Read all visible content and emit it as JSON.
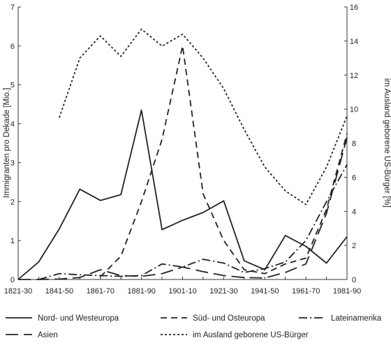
{
  "chart_data": {
    "type": "line",
    "categories": [
      "1821-30",
      "1831-40",
      "1841-50",
      "1851-60",
      "1861-70",
      "1871-80",
      "1881-90",
      "1891-1900",
      "1901-10",
      "1911-20",
      "1921-30",
      "1931-40",
      "1941-50",
      "1951-60",
      "1961-70",
      "1971-80",
      "1981-90"
    ],
    "x_tick_labels": [
      "1821-30",
      "1841-50",
      "1861-70",
      "1881-90",
      "1901-10",
      "1921-30",
      "1941-50",
      "1961-70",
      "1981-90"
    ],
    "ylabel_left": "Immigranten pro Dekade [Mio.]",
    "ylabel_right": "im Ausland geborene US-Bürger [%]",
    "ylim_left": [
      0,
      7
    ],
    "ylim_right": [
      0,
      16
    ],
    "yticks_left": [
      "0",
      "1",
      "2",
      "3",
      "4",
      "5",
      "6",
      "7"
    ],
    "yticks_right": [
      "0",
      "2",
      "4",
      "6",
      "8",
      "10",
      "12",
      "14",
      "16"
    ],
    "grid": false,
    "legend_position": "bottom",
    "series": [
      {
        "name": "Nord- und Westeuropa",
        "axis": "left",
        "style": "solid",
        "x": [
          "1821-30",
          "1831-40",
          "1841-50",
          "1851-60",
          "1861-70",
          "1871-80",
          "1881-90",
          "1891-1900",
          "1901-10",
          "1911-20",
          "1921-30",
          "1931-40",
          "1941-50",
          "1951-60",
          "1961-70",
          "1971-80",
          "1981-90"
        ],
        "values": [
          0.0,
          0.45,
          1.3,
          2.32,
          2.03,
          2.18,
          4.35,
          1.28,
          1.52,
          1.72,
          2.02,
          0.48,
          0.25,
          1.13,
          0.85,
          0.42,
          1.1
        ]
      },
      {
        "name": "Süd- und Osteuropa",
        "axis": "left",
        "style": "dashed",
        "x": [
          "1861-70",
          "1871-80",
          "1881-90",
          "1891-1900",
          "1901-10",
          "1911-20",
          "1921-30",
          "1931-40",
          "1941-50",
          "1951-60",
          "1961-70",
          "1971-80",
          "1981-90"
        ],
        "values": [
          0.07,
          0.6,
          2.0,
          3.6,
          6.0,
          2.2,
          1.0,
          0.25,
          0.15,
          0.4,
          0.55,
          1.8,
          3.75
        ]
      },
      {
        "name": "Lateinamerika",
        "axis": "left",
        "style": "dash-dot",
        "x": [
          "1831-40",
          "1841-50",
          "1851-60",
          "1861-70",
          "1871-80",
          "1881-90",
          "1891-1900",
          "1901-10",
          "1911-20",
          "1921-30",
          "1931-40",
          "1941-50",
          "1951-60",
          "1961-70",
          "1971-80",
          "1981-90"
        ],
        "values": [
          0.0,
          0.15,
          0.12,
          0.1,
          0.08,
          0.1,
          0.4,
          0.32,
          0.52,
          0.42,
          0.18,
          0.28,
          0.45,
          1.0,
          2.0,
          2.95
        ]
      },
      {
        "name": "Asien",
        "axis": "left",
        "style": "long-dash",
        "x": [
          "1821-30",
          "1831-40",
          "1841-50",
          "1851-60",
          "1861-70",
          "1871-80",
          "1881-90",
          "1891-1900",
          "1901-10",
          "1911-20",
          "1921-30",
          "1931-40",
          "1941-50",
          "1951-60",
          "1961-70",
          "1971-80",
          "1981-90"
        ],
        "values": [
          0.0,
          0.0,
          0.01,
          0.05,
          0.25,
          0.1,
          0.08,
          0.15,
          0.32,
          0.2,
          0.1,
          0.05,
          0.04,
          0.18,
          0.4,
          1.7,
          3.65
        ]
      },
      {
        "name": "im Ausland geborene US-Bürger",
        "axis": "right",
        "style": "dotted",
        "x": [
          "1841-50",
          "1851-60",
          "1861-70",
          "1871-80",
          "1881-90",
          "1891-1900",
          "1901-10",
          "1911-20",
          "1921-30",
          "1931-40",
          "1941-50",
          "1951-60",
          "1961-70",
          "1971-80",
          "1981-90"
        ],
        "values": [
          9.5,
          13.0,
          14.3,
          13.1,
          14.7,
          13.7,
          14.4,
          13.0,
          11.2,
          8.8,
          6.6,
          5.2,
          4.4,
          6.6,
          9.6
        ]
      }
    ]
  }
}
